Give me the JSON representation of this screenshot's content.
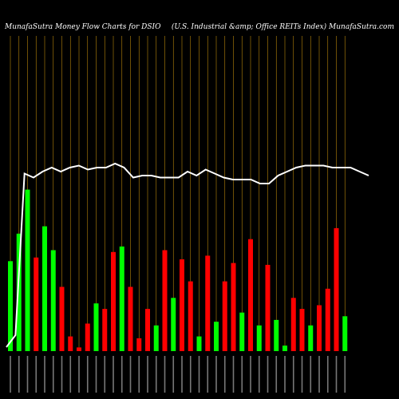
{
  "header": {
    "title_left": "MunafaSutra  Money Flow  Charts for DSIO",
    "title_right": "(U.S. Industrial &amp; Office     REITs Index) MunafaSutra.com"
  },
  "colors": {
    "background": "#000000",
    "up": "#00ff00",
    "down": "#ff0000",
    "gridline": "#b8860b",
    "line": "#ffffff",
    "text": "#ffffff"
  },
  "chart_data": {
    "type": "bar",
    "grid": "vertical lines",
    "bar_colors": [
      "green",
      "green",
      "green",
      "red",
      "green",
      "green",
      "red",
      "red",
      "red",
      "red",
      "green",
      "red",
      "red",
      "green",
      "red",
      "red",
      "red",
      "green",
      "red",
      "green",
      "red",
      "red",
      "green",
      "red",
      "green",
      "red",
      "red",
      "green",
      "red",
      "green",
      "red",
      "green",
      "green",
      "red",
      "red",
      "green",
      "red",
      "red",
      "red",
      "green"
    ],
    "bar_heights": [
      0.49,
      0.64,
      0.88,
      0.51,
      0.68,
      0.55,
      0.35,
      0.08,
      0.02,
      0.15,
      0.26,
      0.23,
      0.54,
      0.57,
      0.35,
      0.07,
      0.23,
      0.14,
      0.55,
      0.29,
      0.5,
      0.38,
      0.08,
      0.52,
      0.16,
      0.38,
      0.48,
      0.21,
      0.61,
      0.14,
      0.47,
      0.17,
      0.03,
      0.29,
      0.23,
      0.14,
      0.25,
      0.34,
      0.67,
      0.19
    ],
    "line_values": [
      0.02,
      0.08,
      0.89,
      0.87,
      0.9,
      0.92,
      0.9,
      0.92,
      0.93,
      0.91,
      0.92,
      0.92,
      0.94,
      0.92,
      0.87,
      0.88,
      0.88,
      0.87,
      0.87,
      0.87,
      0.9,
      0.88,
      0.91,
      0.89,
      0.87,
      0.86,
      0.86,
      0.86,
      0.84,
      0.84,
      0.88,
      0.9,
      0.92,
      0.93,
      0.93,
      0.93,
      0.92,
      0.92,
      0.92,
      0.9,
      0.88
    ]
  }
}
